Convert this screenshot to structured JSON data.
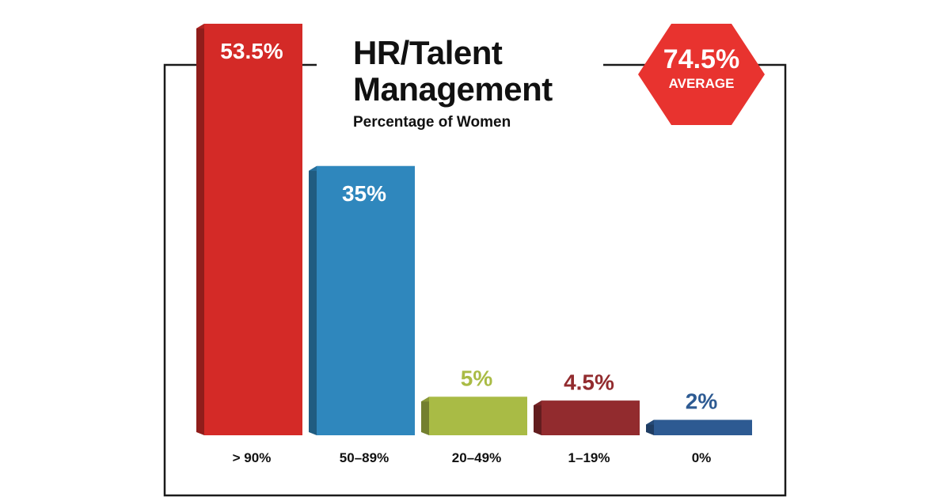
{
  "title_line1": "HR/Talent",
  "title_line2": "Management",
  "subtitle": "Percentage of Women",
  "average": {
    "value": "74.5%",
    "label": "AVERAGE",
    "color": "#e8332f"
  },
  "chart_data": {
    "type": "bar",
    "title": "HR/Talent Management",
    "subtitle": "Percentage of Women",
    "categories": [
      "> 90%",
      "50–89%",
      "20–49%",
      "1–19%",
      "0%"
    ],
    "values": [
      53.5,
      35,
      5,
      4.5,
      2
    ],
    "value_labels": [
      "53.5%",
      "35%",
      "5%",
      "4.5%",
      "2%"
    ],
    "colors": [
      "#d42a27",
      "#2f87bd",
      "#a9bb45",
      "#922b2e",
      "#2d5a92"
    ],
    "label_colors": [
      "#ffffff",
      "#ffffff",
      "#a9bb45",
      "#922b2e",
      "#2d5a92"
    ],
    "ylim": [
      0,
      53.5
    ],
    "grid": false,
    "xlabel": "",
    "ylabel": ""
  }
}
